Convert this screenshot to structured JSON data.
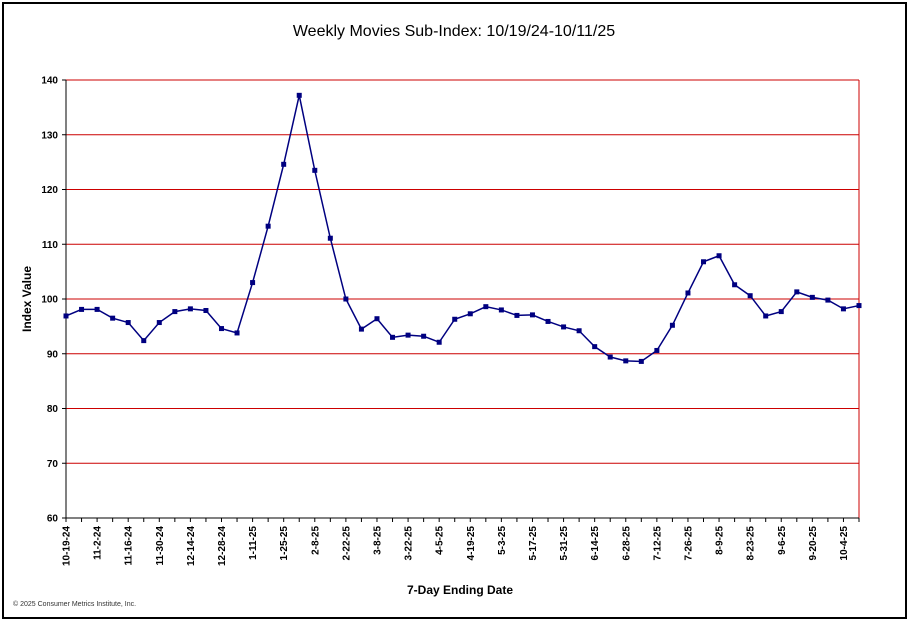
{
  "copyright": "© 2025 Consumer Metrics Institute, Inc.",
  "chart_data": {
    "type": "line",
    "title": "Weekly Movies Sub-Index: 10/19/24-10/11/25",
    "xlabel": "7-Day Ending Date",
    "ylabel": "Index Value",
    "ylim": [
      60,
      140
    ],
    "yticks": [
      60,
      70,
      80,
      90,
      100,
      110,
      120,
      130,
      140
    ],
    "grid": true,
    "colors": {
      "line": "#000080",
      "grid": "#cc0000",
      "axis": "#000000"
    },
    "x": [
      "10-19-24",
      "10-26-24",
      "11-2-24",
      "11-9-24",
      "11-16-24",
      "11-23-24",
      "11-30-24",
      "12-7-24",
      "12-14-24",
      "12-21-24",
      "12-28-24",
      "1-4-25",
      "1-11-25",
      "1-18-25",
      "1-25-25",
      "2-1-25",
      "2-8-25",
      "2-15-25",
      "2-22-25",
      "3-1-25",
      "3-8-25",
      "3-15-25",
      "3-22-25",
      "3-29-25",
      "4-5-25",
      "4-12-25",
      "4-19-25",
      "4-26-25",
      "5-3-25",
      "5-10-25",
      "5-17-25",
      "5-24-25",
      "5-31-25",
      "6-7-25",
      "6-14-25",
      "6-21-25",
      "6-28-25",
      "7-5-25",
      "7-12-25",
      "7-19-25",
      "7-26-25",
      "8-2-25",
      "8-9-25",
      "8-16-25",
      "8-23-25",
      "8-30-25",
      "9-6-25",
      "9-13-25",
      "9-20-25",
      "9-27-25",
      "10-4-25",
      "10-11-25"
    ],
    "xticklabels": [
      "10-19-24",
      "11-2-24",
      "11-16-24",
      "11-30-24",
      "12-14-24",
      "12-28-24",
      "1-11-25",
      "1-25-25",
      "2-8-25",
      "2-22-25",
      "3-8-25",
      "3-22-25",
      "4-5-25",
      "4-19-25",
      "5-3-25",
      "5-17-25",
      "5-31-25",
      "6-14-25",
      "6-28-25",
      "7-12-25",
      "7-26-25",
      "8-9-25",
      "8-23-25",
      "9-6-25",
      "9-20-25",
      "10-4-25"
    ],
    "series": [
      {
        "values": [
          96.9,
          98.1,
          98.1,
          96.5,
          95.7,
          92.4,
          95.7,
          97.7,
          98.2,
          97.9,
          94.6,
          93.8,
          103.0,
          113.3,
          124.6,
          137.2,
          123.5,
          111.1,
          100.0,
          94.5,
          96.4,
          93.0,
          93.4,
          93.2,
          92.1,
          96.3,
          97.3,
          98.6,
          98.0,
          97.0,
          97.1,
          95.9,
          94.9,
          94.2,
          91.3,
          89.4,
          88.7,
          88.6,
          90.6,
          95.2,
          101.1,
          106.8,
          107.9,
          102.6,
          100.6,
          96.9,
          97.7,
          101.3,
          100.3,
          99.8,
          98.2,
          98.8
        ]
      }
    ]
  }
}
